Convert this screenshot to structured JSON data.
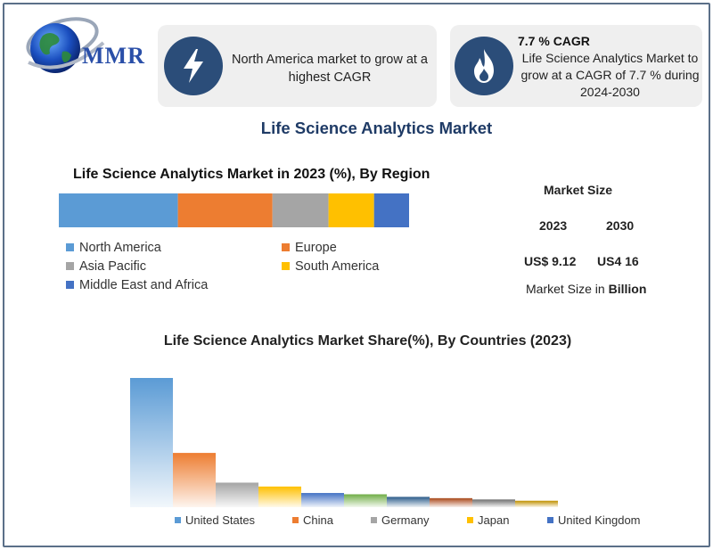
{
  "brand": {
    "logo_text": "MMR"
  },
  "cards": [
    {
      "text": "North America market to grow at a highest CAGR",
      "icon": "lightning-icon"
    },
    {
      "head": "7.7 % CAGR",
      "text": "Life Science Analytics Market to grow at a CAGR of 7.7 % during 2024-2030",
      "icon": "flame-icon"
    }
  ],
  "main_title": "Life Science Analytics Market",
  "market_size": {
    "title": "Market Size",
    "year1": "2023",
    "year2": "2030",
    "value1": "US$ 9.12",
    "value2": "US4 16",
    "note_prefix": "Market Size in ",
    "note_unit": "Billion"
  },
  "colors": {
    "blue": "#5b9bd5",
    "orange": "#ed7d31",
    "gray": "#a5a5a5",
    "yellow": "#ffc000",
    "darkblue": "#4472c4",
    "green": "#70ad47",
    "navy": "#2b4d79"
  },
  "chart_data": [
    {
      "type": "bar",
      "stacked": true,
      "orientation": "horizontal",
      "title": "Life Science Analytics Market in 2023 (%), By Region",
      "series": [
        {
          "name": "North America",
          "values": [
            34
          ],
          "color": "#5b9bd5"
        },
        {
          "name": "Europe",
          "values": [
            27
          ],
          "color": "#ed7d31"
        },
        {
          "name": "Asia Pacific",
          "values": [
            16
          ],
          "color": "#a5a5a5"
        },
        {
          "name": "South America",
          "values": [
            13
          ],
          "color": "#ffc000"
        },
        {
          "name": "Middle East and Africa",
          "values": [
            10
          ],
          "color": "#4472c4"
        }
      ],
      "legend": "bottom"
    },
    {
      "type": "bar",
      "title": "Life Science Analytics Market Share(%), By Countries (2023)",
      "categories": [
        "",
        "",
        "",
        "",
        "",
        "",
        "",
        "",
        "",
        ""
      ],
      "values": [
        100,
        42,
        19,
        16,
        11,
        10,
        8,
        7,
        6,
        5
      ],
      "colors": [
        "#5b9bd5",
        "#ed7d31",
        "#a5a5a5",
        "#ffc000",
        "#4472c4",
        "#70ad47",
        "#2b5c8a",
        "#a9481a",
        "#707070",
        "#bf9000"
      ],
      "legend_entries": [
        {
          "name": "United States",
          "color": "#5b9bd5"
        },
        {
          "name": "China",
          "color": "#ed7d31"
        },
        {
          "name": "Germany",
          "color": "#a5a5a5"
        },
        {
          "name": "Japan",
          "color": "#ffc000"
        },
        {
          "name": "United Kingdom",
          "color": "#4472c4"
        }
      ],
      "legend": "bottom",
      "ylim": [
        0,
        100
      ],
      "grid": false
    }
  ]
}
